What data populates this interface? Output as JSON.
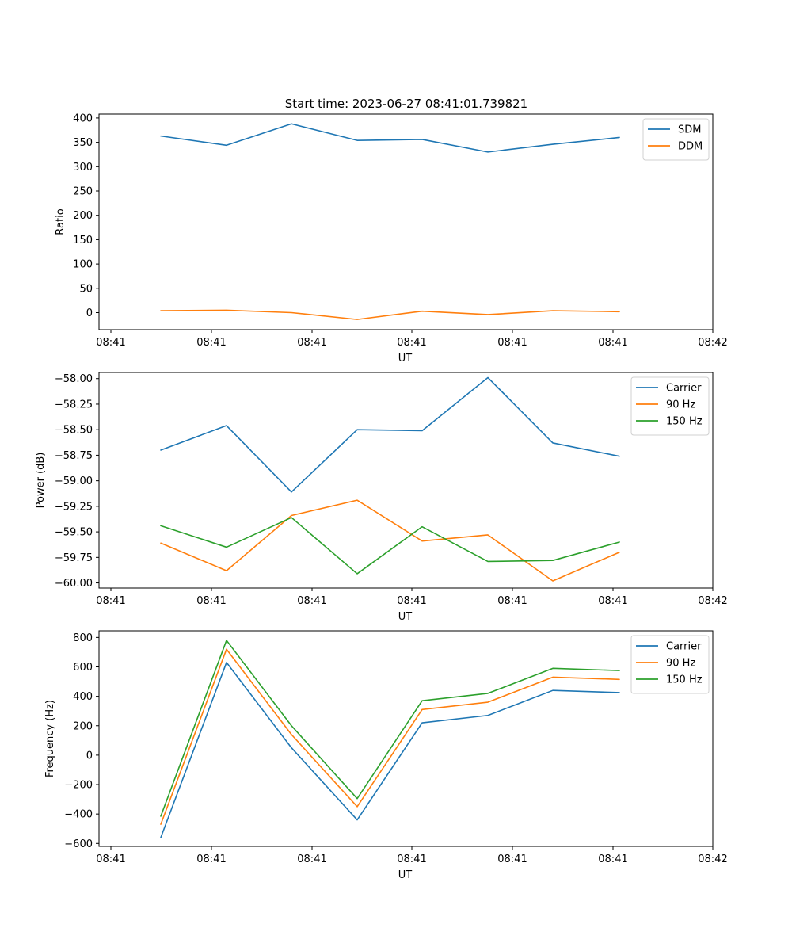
{
  "figure_title": "Start time: 2023-06-27 08:41:01.739821",
  "colors": {
    "blue": "#1f77b4",
    "orange": "#ff7f0e",
    "green": "#2ca02c"
  },
  "chart_data": [
    {
      "type": "line",
      "xlabel": "UT",
      "ylabel": "Ratio",
      "x_tick_labels": [
        "08:41",
        "08:41",
        "08:41",
        "08:41",
        "08:41",
        "08:41",
        "08:42"
      ],
      "y_ticks": [
        0,
        50,
        100,
        150,
        200,
        250,
        300,
        350,
        400
      ],
      "ylim": [
        -35,
        408
      ],
      "legend_position": "top-right",
      "series": [
        {
          "name": "SDM",
          "color": "#1f77b4",
          "values": [
            363,
            344,
            388,
            354,
            356,
            330,
            346,
            360
          ]
        },
        {
          "name": "DDM",
          "color": "#ff7f0e",
          "values": [
            4,
            5,
            0,
            -14,
            3,
            -4,
            4,
            2
          ]
        }
      ]
    },
    {
      "type": "line",
      "xlabel": "UT",
      "ylabel": "Power (dB)",
      "x_tick_labels": [
        "08:41",
        "08:41",
        "08:41",
        "08:41",
        "08:41",
        "08:41",
        "08:42"
      ],
      "y_ticks": [
        -60.0,
        -59.75,
        -59.5,
        -59.25,
        -59.0,
        -58.75,
        -58.5,
        -58.25,
        -58.0
      ],
      "y_tick_labels": [
        "−60.00",
        "−59.75",
        "−59.50",
        "−59.25",
        "−59.00",
        "−58.75",
        "−58.50",
        "−58.25",
        "−58.00"
      ],
      "ylim": [
        -60.05,
        -57.94
      ],
      "legend_position": "top-right",
      "series": [
        {
          "name": "Carrier",
          "color": "#1f77b4",
          "values": [
            -58.7,
            -58.46,
            -59.11,
            -58.5,
            -58.51,
            -57.99,
            -58.63,
            -58.76
          ]
        },
        {
          "name": "90 Hz",
          "color": "#ff7f0e",
          "values": [
            -59.61,
            -59.88,
            -59.34,
            -59.19,
            -59.59,
            -59.53,
            -59.98,
            -59.7
          ]
        },
        {
          "name": "150 Hz",
          "color": "#2ca02c",
          "values": [
            -59.44,
            -59.65,
            -59.36,
            -59.91,
            -59.45,
            -59.79,
            -59.78,
            -59.6
          ]
        }
      ]
    },
    {
      "type": "line",
      "xlabel": "UT",
      "ylabel": "Frequency (Hz)",
      "x_tick_labels": [
        "08:41",
        "08:41",
        "08:41",
        "08:41",
        "08:41",
        "08:41",
        "08:42"
      ],
      "y_ticks": [
        -600,
        -400,
        -200,
        0,
        200,
        400,
        600,
        800
      ],
      "y_tick_labels": [
        "−600",
        "−400",
        "−200",
        "0",
        "200",
        "400",
        "600",
        "800"
      ],
      "ylim": [
        -620,
        845
      ],
      "legend_position": "top-right",
      "series": [
        {
          "name": "Carrier",
          "color": "#1f77b4",
          "values": [
            -560,
            630,
            50,
            -440,
            220,
            270,
            440,
            425
          ]
        },
        {
          "name": "90 Hz",
          "color": "#ff7f0e",
          "values": [
            -470,
            720,
            140,
            -350,
            310,
            360,
            530,
            515
          ]
        },
        {
          "name": "150 Hz",
          "color": "#2ca02c",
          "values": [
            -415,
            780,
            200,
            -295,
            370,
            420,
            590,
            575
          ]
        }
      ]
    }
  ]
}
